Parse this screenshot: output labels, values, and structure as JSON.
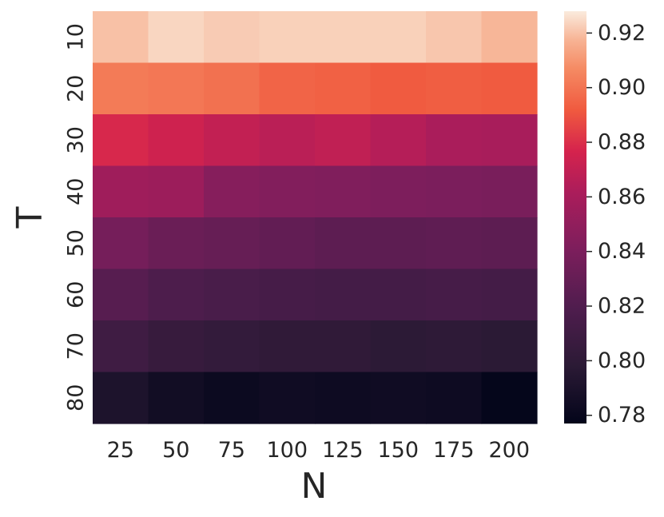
{
  "chart_data": {
    "type": "heatmap",
    "xlabel": "N",
    "ylabel": "T",
    "x_categories": [
      "25",
      "50",
      "75",
      "100",
      "125",
      "150",
      "175",
      "200"
    ],
    "y_categories": [
      "10",
      "20",
      "30",
      "40",
      "50",
      "60",
      "70",
      "80"
    ],
    "values": [
      [
        0.92,
        0.924,
        0.922,
        0.923,
        0.923,
        0.923,
        0.921,
        0.918
      ],
      [
        0.902,
        0.901,
        0.899,
        0.895,
        0.894,
        0.892,
        0.893,
        0.892
      ],
      [
        0.878,
        0.874,
        0.87,
        0.867,
        0.869,
        0.865,
        0.861,
        0.86
      ],
      [
        0.856,
        0.855,
        0.845,
        0.843,
        0.842,
        0.841,
        0.84,
        0.839
      ],
      [
        0.837,
        0.832,
        0.83,
        0.828,
        0.826,
        0.826,
        0.827,
        0.826
      ],
      [
        0.823,
        0.818,
        0.816,
        0.814,
        0.813,
        0.813,
        0.814,
        0.813
      ],
      [
        0.81,
        0.805,
        0.803,
        0.801,
        0.801,
        0.799,
        0.8,
        0.798
      ],
      [
        0.791,
        0.785,
        0.782,
        0.784,
        0.783,
        0.784,
        0.783,
        0.778
      ]
    ],
    "colormap": "rocket",
    "colorbar": {
      "range": [
        0.777,
        0.928
      ],
      "ticks": [
        "0.78",
        "0.80",
        "0.82",
        "0.84",
        "0.86",
        "0.88",
        "0.90",
        "0.92"
      ],
      "tick_values": [
        0.78,
        0.8,
        0.82,
        0.84,
        0.86,
        0.88,
        0.9,
        0.92
      ]
    },
    "grid": false
  }
}
